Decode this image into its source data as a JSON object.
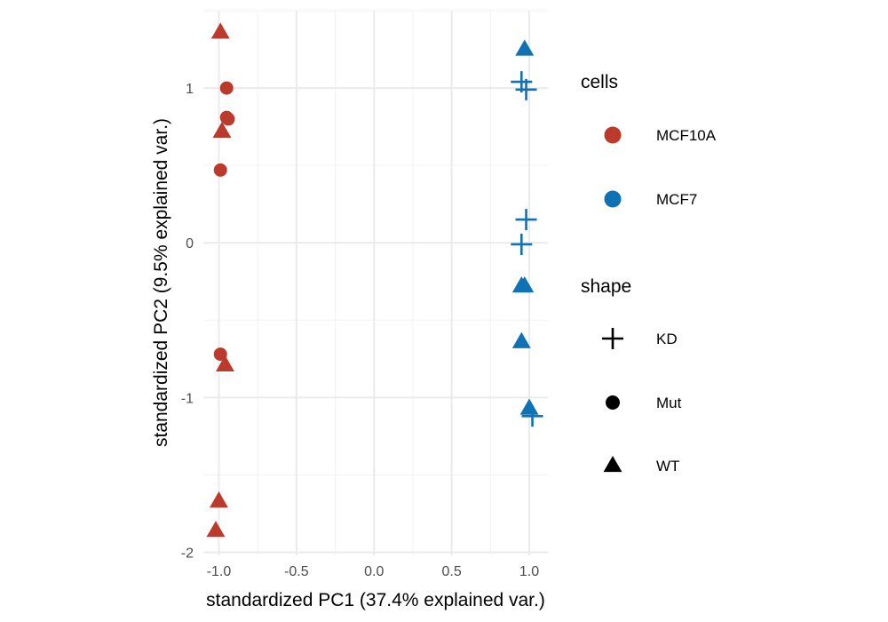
{
  "chart_data": {
    "type": "scatter",
    "title": "",
    "xlabel": "standardized PC1 (37.4% explained var.)",
    "ylabel": "standardized PC2 (9.5% explained var.)",
    "xlim": [
      -1.1,
      1.12
    ],
    "ylim": [
      -2.02,
      1.5
    ],
    "x_ticks": [
      -1.0,
      -0.5,
      0.0,
      0.5,
      1.0
    ],
    "x_tick_labels": [
      "-1.0",
      "-0.5",
      "0.0",
      "0.5",
      "1.0"
    ],
    "y_ticks": [
      -2,
      -1,
      0,
      1
    ],
    "y_tick_labels": [
      "-2",
      "-1",
      "0",
      "1"
    ],
    "grid": true,
    "legend_position": "right",
    "colors": {
      "MCF10A": "#bb3a2c",
      "MCF7": "#0f72b4"
    },
    "legend": {
      "color_title": "cells",
      "color_entries": [
        "MCF10A",
        "MCF7"
      ],
      "shape_title": "shape",
      "shape_entries": [
        {
          "label": "KD",
          "shape": "plus"
        },
        {
          "label": "Mut",
          "shape": "circle"
        },
        {
          "label": "WT",
          "shape": "triangle"
        }
      ]
    },
    "points": [
      {
        "x": -0.99,
        "y": 1.36,
        "cells": "MCF10A",
        "shape": "WT"
      },
      {
        "x": -0.95,
        "y": 1.0,
        "cells": "MCF10A",
        "shape": "Mut"
      },
      {
        "x": -0.94,
        "y": 0.8,
        "cells": "MCF10A",
        "shape": "Mut"
      },
      {
        "x": -0.95,
        "y": 0.81,
        "cells": "MCF10A",
        "shape": "Mut"
      },
      {
        "x": -0.98,
        "y": 0.72,
        "cells": "MCF10A",
        "shape": "WT"
      },
      {
        "x": -0.99,
        "y": 0.47,
        "cells": "MCF10A",
        "shape": "Mut"
      },
      {
        "x": -0.99,
        "y": -0.72,
        "cells": "MCF10A",
        "shape": "Mut"
      },
      {
        "x": -0.96,
        "y": -0.79,
        "cells": "MCF10A",
        "shape": "WT"
      },
      {
        "x": -1.0,
        "y": -1.67,
        "cells": "MCF10A",
        "shape": "WT"
      },
      {
        "x": -1.02,
        "y": -1.86,
        "cells": "MCF10A",
        "shape": "WT"
      },
      {
        "x": 0.97,
        "y": 1.25,
        "cells": "MCF7",
        "shape": "WT"
      },
      {
        "x": 0.95,
        "y": 1.04,
        "cells": "MCF7",
        "shape": "KD"
      },
      {
        "x": 0.98,
        "y": 0.99,
        "cells": "MCF7",
        "shape": "KD"
      },
      {
        "x": 0.98,
        "y": 0.15,
        "cells": "MCF7",
        "shape": "KD"
      },
      {
        "x": 0.95,
        "y": -0.01,
        "cells": "MCF7",
        "shape": "KD"
      },
      {
        "x": 0.95,
        "y": -0.28,
        "cells": "MCF7",
        "shape": "WT"
      },
      {
        "x": 0.97,
        "y": -0.28,
        "cells": "MCF7",
        "shape": "WT"
      },
      {
        "x": 0.95,
        "y": -0.64,
        "cells": "MCF7",
        "shape": "WT"
      },
      {
        "x": 1.0,
        "y": -1.07,
        "cells": "MCF7",
        "shape": "WT"
      },
      {
        "x": 1.02,
        "y": -1.12,
        "cells": "MCF7",
        "shape": "KD"
      }
    ]
  }
}
